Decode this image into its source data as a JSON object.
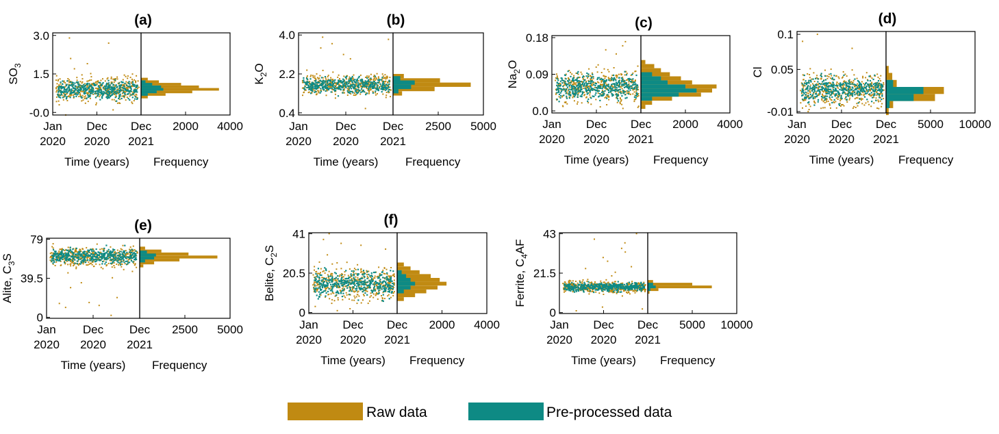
{
  "colors": {
    "raw": "#C08A12",
    "pre": "#0E8A84"
  },
  "legend": {
    "raw_label": "Raw data",
    "pre_label": "Pre-processed data"
  },
  "chart_data": [
    {
      "type": "scatter+histogram",
      "id": "a",
      "title": "(a)",
      "ylabel": "SO",
      "ylabel_sub": "3",
      "ylabel_suffix": "",
      "xlabel": "Time (years)",
      "hist_xlabel": "Frequency",
      "yticks": [
        "3.0",
        "1.5",
        "-0.0"
      ],
      "ytick_values": [
        3.0,
        1.5,
        0.0
      ],
      "ylim": [
        -0.1,
        3.1
      ],
      "xticks": [
        [
          "Jan",
          "2020"
        ],
        [
          "Dec",
          "2020"
        ],
        [
          "Dec",
          "2021"
        ]
      ],
      "hist_ticks": [
        "2000",
        "4000"
      ],
      "hist_tick_values": [
        2000,
        4000
      ],
      "hist_max": 4000,
      "raw": {
        "center": 0.9,
        "spread": 0.22,
        "outliers": [
          2.9,
          2.7,
          2.1,
          0.1,
          -0.1,
          1.9,
          1.7
        ]
      },
      "pre": {
        "center": 0.88,
        "spread": 0.16
      },
      "hist_raw": [
        {
          "y": 1.3,
          "v": 300
        },
        {
          "y": 1.2,
          "v": 800
        },
        {
          "y": 1.1,
          "v": 1800
        },
        {
          "y": 1.0,
          "v": 2600
        },
        {
          "y": 0.9,
          "v": 3500
        },
        {
          "y": 0.8,
          "v": 2300
        },
        {
          "y": 0.7,
          "v": 1100
        },
        {
          "y": 0.6,
          "v": 300
        }
      ],
      "hist_pre": [
        {
          "y": 1.2,
          "v": 200
        },
        {
          "y": 1.1,
          "v": 500
        },
        {
          "y": 1.0,
          "v": 900
        },
        {
          "y": 0.9,
          "v": 1000
        },
        {
          "y": 0.8,
          "v": 700
        },
        {
          "y": 0.7,
          "v": 300
        }
      ]
    },
    {
      "type": "scatter+histogram",
      "id": "b",
      "title": "(b)",
      "ylabel": "K",
      "ylabel_sub": "2",
      "ylabel_suffix": "O",
      "xlabel": "Time (years)",
      "hist_xlabel": "Frequency",
      "yticks": [
        "4.0",
        "2.2",
        "0.4"
      ],
      "ytick_values": [
        4.0,
        2.2,
        0.4
      ],
      "ylim": [
        0.3,
        4.1
      ],
      "xticks": [
        [
          "Jan",
          "2020"
        ],
        [
          "Dec",
          "2020"
        ],
        [
          "Dec",
          "2021"
        ]
      ],
      "hist_ticks": [
        "2500",
        "5000"
      ],
      "hist_tick_values": [
        2500,
        5000
      ],
      "hist_max": 5000,
      "raw": {
        "center": 1.7,
        "spread": 0.25,
        "outliers": [
          3.9,
          3.6,
          3.4,
          3.1,
          2.9,
          0.6,
          3.8
        ]
      },
      "pre": {
        "center": 1.68,
        "spread": 0.18
      },
      "hist_raw": [
        {
          "y": 2.1,
          "v": 600
        },
        {
          "y": 1.9,
          "v": 2600
        },
        {
          "y": 1.7,
          "v": 4300
        },
        {
          "y": 1.5,
          "v": 2300
        },
        {
          "y": 1.3,
          "v": 500
        }
      ],
      "hist_pre": [
        {
          "y": 2.0,
          "v": 400
        },
        {
          "y": 1.8,
          "v": 1200
        },
        {
          "y": 1.6,
          "v": 1000
        },
        {
          "y": 1.4,
          "v": 300
        }
      ]
    },
    {
      "type": "scatter+histogram",
      "id": "c",
      "title": "(c)",
      "ylabel": "Na",
      "ylabel_sub": "2",
      "ylabel_suffix": "O",
      "xlabel": "Time (years)",
      "hist_xlabel": "Frequency",
      "yticks": [
        "0.18",
        "0.09",
        "0.0"
      ],
      "ytick_values": [
        0.18,
        0.09,
        0.0
      ],
      "ylim": [
        -0.005,
        0.185
      ],
      "xticks": [
        [
          "Jan",
          "2020"
        ],
        [
          "Dec",
          "2020"
        ],
        [
          "Dec",
          "2021"
        ]
      ],
      "hist_ticks": [
        "2000",
        "4000"
      ],
      "hist_tick_values": [
        2000,
        4000
      ],
      "hist_max": 4000,
      "raw": {
        "center": 0.06,
        "spread": 0.02,
        "outliers": [
          0.17,
          0.16,
          0.15,
          0.14,
          0.01,
          0.02
        ]
      },
      "pre": {
        "center": 0.06,
        "spread": 0.015
      },
      "hist_raw": [
        {
          "y": 0.12,
          "v": 200
        },
        {
          "y": 0.11,
          "v": 600
        },
        {
          "y": 0.1,
          "v": 900
        },
        {
          "y": 0.09,
          "v": 1300
        },
        {
          "y": 0.08,
          "v": 1800
        },
        {
          "y": 0.07,
          "v": 2300
        },
        {
          "y": 0.06,
          "v": 3400
        },
        {
          "y": 0.05,
          "v": 3200
        },
        {
          "y": 0.04,
          "v": 2700
        },
        {
          "y": 0.03,
          "v": 1400
        },
        {
          "y": 0.02,
          "v": 500
        },
        {
          "y": 0.01,
          "v": 200
        }
      ],
      "hist_pre": [
        {
          "y": 0.09,
          "v": 500
        },
        {
          "y": 0.08,
          "v": 900
        },
        {
          "y": 0.07,
          "v": 1200
        },
        {
          "y": 0.06,
          "v": 2000
        },
        {
          "y": 0.05,
          "v": 2500
        },
        {
          "y": 0.04,
          "v": 1700
        },
        {
          "y": 0.03,
          "v": 500
        }
      ]
    },
    {
      "type": "scatter+histogram",
      "id": "d",
      "title": "(d)",
      "ylabel": "Cl",
      "ylabel_sub": "",
      "ylabel_suffix": "",
      "xlabel": "Time (years)",
      "hist_xlabel": "Frequency",
      "yticks": [
        "0.1",
        "0.05",
        "-0.01"
      ],
      "ytick_values": [
        0.1,
        0.05,
        -0.01
      ],
      "ylim": [
        -0.012,
        0.104
      ],
      "xticks": [
        [
          "Jan",
          "2020"
        ],
        [
          "Dec",
          "2020"
        ],
        [
          "Dec",
          "2021"
        ]
      ],
      "hist_ticks": [
        "5000",
        "10000"
      ],
      "hist_tick_values": [
        5000,
        10000
      ],
      "hist_max": 10000,
      "raw": {
        "center": 0.02,
        "spread": 0.012,
        "outliers": [
          0.1,
          0.09,
          0.08,
          -0.01,
          -0.005
        ]
      },
      "pre": {
        "center": 0.022,
        "spread": 0.008
      },
      "hist_raw": [
        {
          "y": 0.05,
          "v": 300
        },
        {
          "y": 0.04,
          "v": 700
        },
        {
          "y": 0.03,
          "v": 1200
        },
        {
          "y": 0.02,
          "v": 6500
        },
        {
          "y": 0.01,
          "v": 5500
        },
        {
          "y": 0.0,
          "v": 800
        },
        {
          "y": -0.01,
          "v": 300
        }
      ],
      "hist_pre": [
        {
          "y": 0.03,
          "v": 800
        },
        {
          "y": 0.02,
          "v": 4200
        },
        {
          "y": 0.01,
          "v": 3100
        },
        {
          "y": 0.0,
          "v": 400
        }
      ]
    },
    {
      "type": "scatter+histogram",
      "id": "e",
      "title": "(e)",
      "ylabel": "Alite, C",
      "ylabel_sub": "3",
      "ylabel_suffix": "S",
      "xlabel": "Time (years)",
      "hist_xlabel": "Frequency",
      "yticks": [
        "79",
        "39.5",
        "0"
      ],
      "ytick_values": [
        79,
        39.5,
        0
      ],
      "ylim": [
        -1,
        80
      ],
      "xticks": [
        [
          "Jan",
          "2020"
        ],
        [
          "Dec",
          "2020"
        ],
        [
          "Dec",
          "2021"
        ]
      ],
      "hist_ticks": [
        "2500",
        "5000"
      ],
      "hist_tick_values": [
        2500,
        5000
      ],
      "hist_max": 5000,
      "raw": {
        "center": 61,
        "spread": 5,
        "outliers": [
          10,
          14,
          2,
          20,
          15,
          30,
          35,
          40,
          45,
          12
        ]
      },
      "pre": {
        "center": 62,
        "spread": 3.5
      },
      "hist_raw": [
        {
          "y": 70,
          "v": 300
        },
        {
          "y": 67,
          "v": 1200
        },
        {
          "y": 64,
          "v": 2700
        },
        {
          "y": 61,
          "v": 4300
        },
        {
          "y": 58,
          "v": 2200
        },
        {
          "y": 55,
          "v": 800
        },
        {
          "y": 52,
          "v": 200
        }
      ],
      "hist_pre": [
        {
          "y": 66,
          "v": 400
        },
        {
          "y": 63,
          "v": 900
        },
        {
          "y": 60,
          "v": 800
        },
        {
          "y": 57,
          "v": 300
        }
      ]
    },
    {
      "type": "scatter+histogram",
      "id": "f",
      "title": "(f)",
      "ylabel": "Belite, C",
      "ylabel_sub": "2",
      "ylabel_suffix": "S",
      "xlabel": "Time (years)",
      "hist_xlabel": "Frequency",
      "yticks": [
        "41",
        "20.5",
        "0"
      ],
      "ytick_values": [
        41,
        20.5,
        0
      ],
      "ylim": [
        -0.5,
        41.5
      ],
      "xticks": [
        [
          "Jan",
          "2020"
        ],
        [
          "Dec",
          "2020"
        ],
        [
          "Dec",
          "2021"
        ]
      ],
      "hist_ticks": [
        "2000",
        "4000"
      ],
      "hist_tick_values": [
        2000,
        4000
      ],
      "hist_max": 4000,
      "raw": {
        "center": 15,
        "spread": 4.5,
        "outliers": [
          41,
          38,
          36,
          33,
          30,
          2,
          1,
          35
        ]
      },
      "pre": {
        "center": 15,
        "spread": 3.2
      },
      "hist_raw": [
        {
          "y": 25,
          "v": 300
        },
        {
          "y": 23,
          "v": 600
        },
        {
          "y": 21,
          "v": 1000
        },
        {
          "y": 19,
          "v": 1500
        },
        {
          "y": 17,
          "v": 1900
        },
        {
          "y": 15,
          "v": 2200
        },
        {
          "y": 13,
          "v": 1800
        },
        {
          "y": 11,
          "v": 1300
        },
        {
          "y": 9,
          "v": 800
        },
        {
          "y": 7,
          "v": 300
        }
      ],
      "hist_pre": [
        {
          "y": 21,
          "v": 200
        },
        {
          "y": 19,
          "v": 400
        },
        {
          "y": 17,
          "v": 600
        },
        {
          "y": 15,
          "v": 800
        },
        {
          "y": 13,
          "v": 600
        },
        {
          "y": 11,
          "v": 300
        }
      ]
    },
    {
      "type": "scatter+histogram",
      "id": "g",
      "title": "",
      "ylabel": "Ferrite, C",
      "ylabel_sub": "4",
      "ylabel_suffix": "AF",
      "xlabel": "Time (years)",
      "hist_xlabel": "Frequency",
      "yticks": [
        "43",
        "21.5",
        "0"
      ],
      "ytick_values": [
        43,
        21.5,
        0
      ],
      "ylim": [
        -0.5,
        43.5
      ],
      "xticks": [
        [
          "Jan",
          "2020"
        ],
        [
          "Dec",
          "2020"
        ],
        [
          "Dec",
          "2021"
        ]
      ],
      "hist_ticks": [
        "5000",
        "10000"
      ],
      "hist_tick_values": [
        5000,
        10000
      ],
      "hist_max": 10000,
      "raw": {
        "center": 14,
        "spread": 1.6,
        "outliers": [
          43,
          40,
          38,
          35,
          33,
          30,
          28,
          25,
          24,
          22,
          20,
          3,
          1,
          2
        ]
      },
      "pre": {
        "center": 14,
        "spread": 1.1
      },
      "hist_raw": [
        {
          "y": 17,
          "v": 600
        },
        {
          "y": 15.5,
          "v": 5000
        },
        {
          "y": 14,
          "v": 7200
        },
        {
          "y": 12.5,
          "v": 1200
        },
        {
          "y": 11,
          "v": 200
        }
      ],
      "hist_pre": [
        {
          "y": 15.5,
          "v": 600
        },
        {
          "y": 14,
          "v": 900
        },
        {
          "y": 12.5,
          "v": 300
        }
      ]
    }
  ]
}
